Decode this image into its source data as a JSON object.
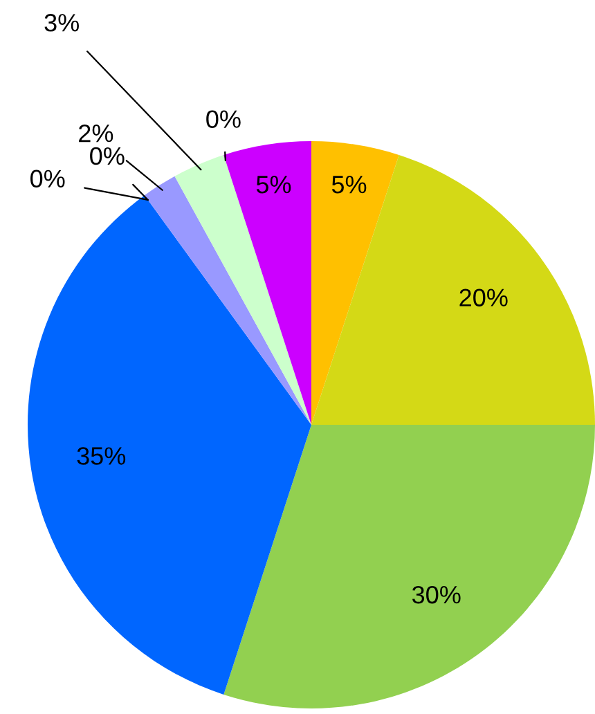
{
  "chart_data": {
    "type": "pie",
    "categories": [
      null,
      null,
      null,
      null,
      null,
      null,
      null,
      null,
      null,
      null
    ],
    "values": [
      5,
      20,
      30,
      35,
      0,
      0,
      2,
      3,
      0,
      5
    ],
    "colors": [
      "#ffc000",
      "#d4d916",
      "#92d050",
      "#0066ff",
      "#3366cc",
      "#6699ff",
      "#9999ff",
      "#ccffcc",
      "#99ccff",
      "#cc00ff"
    ],
    "value_labels": [
      "5%",
      "20%",
      "30%",
      "35%",
      "0%",
      "0%",
      "2%",
      "3%",
      "0%",
      "5%"
    ],
    "legend": false
  }
}
